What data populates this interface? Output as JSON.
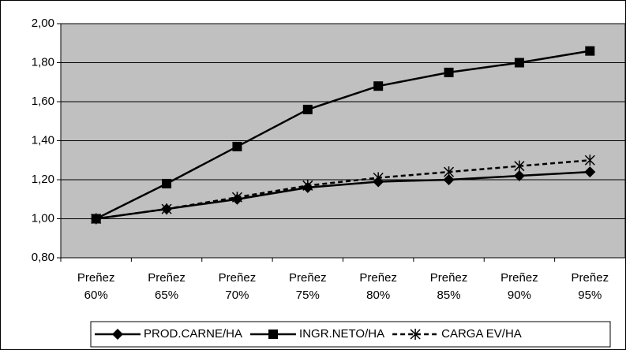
{
  "chart_data": {
    "type": "line",
    "categories": [
      "Preñez 60%",
      "Preñez 65%",
      "Preñez 70%",
      "Preñez 75%",
      "Preñez 80%",
      "Preñez 85%",
      "Preñez 90%",
      "Preñez 95%"
    ],
    "series": [
      {
        "name": "PROD.CARNE/HA",
        "color": "#000000",
        "marker": "diamond",
        "dashed": false,
        "values": [
          1.0,
          1.05,
          1.1,
          1.16,
          1.19,
          1.2,
          1.22,
          1.24
        ]
      },
      {
        "name": "INGR.NETO/HA",
        "color": "#000000",
        "marker": "square",
        "dashed": false,
        "values": [
          1.0,
          1.18,
          1.37,
          1.56,
          1.68,
          1.75,
          1.8,
          1.86
        ]
      },
      {
        "name": "CARGA EV/HA",
        "color": "#000000",
        "marker": "star",
        "dashed": true,
        "values": [
          1.0,
          1.05,
          1.11,
          1.17,
          1.21,
          1.24,
          1.27,
          1.3
        ]
      }
    ],
    "ylim": [
      0.8,
      2.0
    ],
    "yticks": [
      {
        "value": 0.8,
        "label": "0,80"
      },
      {
        "value": 1.0,
        "label": "1,00"
      },
      {
        "value": 1.2,
        "label": "1,20"
      },
      {
        "value": 1.4,
        "label": "1,40"
      },
      {
        "value": 1.6,
        "label": "1,60"
      },
      {
        "value": 1.8,
        "label": "1,80"
      },
      {
        "value": 2.0,
        "label": "2,00"
      }
    ],
    "grid": true
  }
}
